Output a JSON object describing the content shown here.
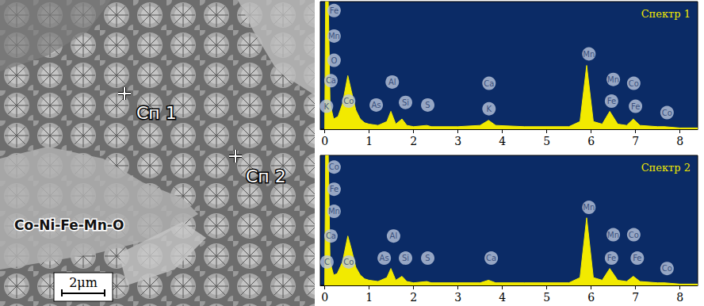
{
  "image": {
    "markers": [
      {
        "label": "Сп 1"
      },
      {
        "label": "Сп 2"
      }
    ],
    "annotation": "Co-Ni-Fe-Mn-O",
    "scale_bar": "2μm"
  },
  "chart_data": [
    {
      "type": "line",
      "title": "Спектр 1",
      "color": "#f2ea00",
      "x": [
        0,
        0.02,
        0.08,
        0.12,
        0.2,
        0.3,
        0.4,
        0.52,
        0.6,
        0.7,
        0.8,
        0.9,
        1.0,
        1.2,
        1.4,
        1.49,
        1.6,
        1.74,
        1.85,
        2.0,
        2.3,
        2.4,
        3.0,
        3.5,
        3.69,
        3.85,
        4.5,
        5.5,
        5.75,
        5.9,
        6.05,
        6.25,
        6.42,
        6.6,
        6.8,
        6.95,
        7.1,
        7.5,
        7.65,
        8.0,
        8.4
      ],
      "values": [
        0,
        100,
        100,
        20,
        8,
        10,
        20,
        42,
        30,
        15,
        8,
        5,
        4,
        3,
        6,
        14,
        4,
        8,
        3,
        2,
        3,
        2,
        2,
        3,
        7,
        3,
        2,
        2,
        6,
        50,
        6,
        4,
        14,
        4,
        3,
        8,
        3,
        2,
        2,
        1,
        1
      ],
      "xlim": [
        -0.1,
        8.4
      ],
      "xticks": [
        0,
        1,
        2,
        3,
        4,
        5,
        6,
        7,
        8
      ],
      "ylim": [
        0,
        100
      ],
      "grid": false,
      "tick_labels": "x",
      "annotations": [
        {
          "text": "Fe",
          "x": 0.21,
          "y": 93
        },
        {
          "text": "Mn",
          "x": 0.21,
          "y": 73
        },
        {
          "text": "O",
          "x": 0.21,
          "y": 54
        },
        {
          "text": "Ca",
          "x": 0.14,
          "y": 38
        },
        {
          "text": "K",
          "x": 0.04,
          "y": 18
        },
        {
          "text": "Co",
          "x": 0.54,
          "y": 22
        },
        {
          "text": "As",
          "x": 1.16,
          "y": 19
        },
        {
          "text": "Al",
          "x": 1.52,
          "y": 37
        },
        {
          "text": "Si",
          "x": 1.82,
          "y": 21
        },
        {
          "text": "S",
          "x": 2.32,
          "y": 19
        },
        {
          "text": "Ca",
          "x": 3.7,
          "y": 36
        },
        {
          "text": "K",
          "x": 3.7,
          "y": 16
        },
        {
          "text": "Mn",
          "x": 5.95,
          "y": 59
        },
        {
          "text": "Mn",
          "x": 6.5,
          "y": 39
        },
        {
          "text": "Fe",
          "x": 6.46,
          "y": 22
        },
        {
          "text": "Co",
          "x": 6.96,
          "y": 36
        },
        {
          "text": "Fe",
          "x": 7.0,
          "y": 18
        },
        {
          "text": "Co",
          "x": 7.71,
          "y": 13
        }
      ]
    },
    {
      "type": "line",
      "title": "Спектр 2",
      "color": "#f2ea00",
      "x": [
        0,
        0.02,
        0.08,
        0.12,
        0.2,
        0.28,
        0.4,
        0.52,
        0.6,
        0.7,
        0.8,
        0.9,
        1.0,
        1.2,
        1.4,
        1.49,
        1.6,
        1.74,
        1.85,
        2.0,
        2.3,
        2.4,
        3.0,
        3.5,
        3.69,
        3.85,
        4.5,
        5.5,
        5.75,
        5.9,
        6.05,
        6.25,
        6.42,
        6.6,
        6.8,
        6.95,
        7.1,
        7.5,
        7.65,
        8.0,
        8.4
      ],
      "values": [
        0,
        100,
        100,
        18,
        8,
        9,
        18,
        38,
        28,
        14,
        8,
        5,
        4,
        3,
        6,
        13,
        4,
        7,
        3,
        2,
        3,
        2,
        2,
        2,
        4,
        2,
        2,
        2,
        6,
        52,
        6,
        4,
        13,
        4,
        3,
        7,
        3,
        2,
        2,
        1,
        1
      ],
      "xlim": [
        -0.1,
        8.4
      ],
      "xticks": [
        0,
        1,
        2,
        3,
        4,
        5,
        6,
        7,
        8
      ],
      "ylim": [
        0,
        100
      ],
      "grid": false,
      "tick_labels": "x",
      "annotations": [
        {
          "text": "Co",
          "x": 0.21,
          "y": 91
        },
        {
          "text": "Fe",
          "x": 0.21,
          "y": 74
        },
        {
          "text": "Mn",
          "x": 0.21,
          "y": 57
        },
        {
          "text": "Ca",
          "x": 0.14,
          "y": 38
        },
        {
          "text": "C",
          "x": 0.05,
          "y": 18
        },
        {
          "text": "Co",
          "x": 0.54,
          "y": 18
        },
        {
          "text": "As",
          "x": 1.34,
          "y": 21
        },
        {
          "text": "Al",
          "x": 1.55,
          "y": 38
        },
        {
          "text": "Si",
          "x": 1.82,
          "y": 21
        },
        {
          "text": "S",
          "x": 2.32,
          "y": 21
        },
        {
          "text": "Ca",
          "x": 3.75,
          "y": 21
        },
        {
          "text": "Mn",
          "x": 5.95,
          "y": 60
        },
        {
          "text": "Mn",
          "x": 6.5,
          "y": 39
        },
        {
          "text": "Fe",
          "x": 6.46,
          "y": 21
        },
        {
          "text": "Co",
          "x": 6.96,
          "y": 39
        },
        {
          "text": "Fe",
          "x": 7.04,
          "y": 21
        },
        {
          "text": "Co",
          "x": 7.71,
          "y": 13
        }
      ]
    }
  ]
}
